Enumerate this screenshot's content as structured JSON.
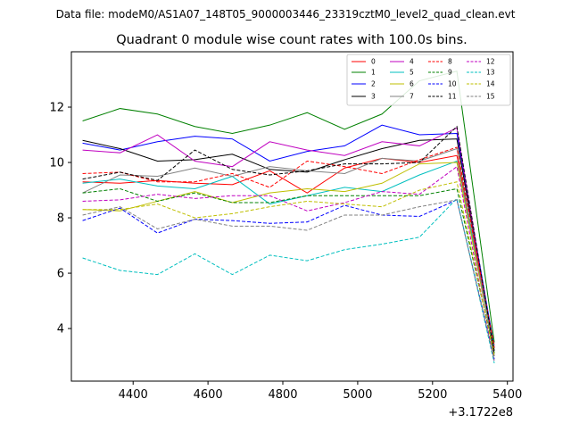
{
  "figure": {
    "suptitle": "Data file: modeM0/AS1A07_148T05_9000003446_23319cztM0_level2_quad_clean.evt"
  },
  "chart_data": {
    "type": "line",
    "title": "Quadrant 0 module wise count rates with 100.0s bins.",
    "xlabel": "",
    "ylabel": "",
    "x_offset_label": "+3.1722e8",
    "x_offset": 317220000,
    "xlim": [
      4235,
      5415
    ],
    "ylim": [
      2.1,
      14.0
    ],
    "x_ticks": [
      4400,
      4600,
      4800,
      5000,
      5200,
      5400
    ],
    "y_ticks": [
      4,
      6,
      8,
      10,
      12
    ],
    "x": [
      4265,
      4365,
      4465,
      4565,
      4665,
      4765,
      4865,
      4965,
      5065,
      5165,
      5265,
      5365
    ],
    "grid": false,
    "legend_position": "top-right",
    "series": [
      {
        "name": "0",
        "color": "#ff0000",
        "dash": "solid",
        "values": [
          9.3,
          9.25,
          9.35,
          9.25,
          9.2,
          9.7,
          8.9,
          9.8,
          10.15,
          10.0,
          10.25,
          3.4
        ]
      },
      {
        "name": "1",
        "color": "#008000",
        "dash": "solid",
        "values": [
          11.5,
          11.95,
          11.75,
          11.3,
          11.05,
          11.35,
          11.8,
          11.2,
          11.75,
          12.95,
          13.3,
          3.5
        ]
      },
      {
        "name": "2",
        "color": "#0000ff",
        "dash": "solid",
        "values": [
          10.7,
          10.45,
          10.75,
          10.95,
          10.85,
          10.05,
          10.4,
          10.6,
          11.35,
          11.0,
          11.05,
          3.3
        ]
      },
      {
        "name": "3",
        "color": "#000000",
        "dash": "solid",
        "values": [
          10.8,
          10.5,
          10.05,
          10.1,
          10.3,
          9.75,
          9.65,
          10.1,
          10.5,
          10.8,
          10.85,
          3.2
        ]
      },
      {
        "name": "4",
        "color": "#c000c0",
        "dash": "solid",
        "values": [
          10.45,
          10.35,
          11.0,
          10.05,
          9.85,
          10.75,
          10.45,
          10.25,
          10.75,
          10.6,
          11.25,
          3.0
        ]
      },
      {
        "name": "5",
        "color": "#00bfbf",
        "dash": "solid",
        "values": [
          9.25,
          9.4,
          9.15,
          9.05,
          9.5,
          8.5,
          8.8,
          9.1,
          8.95,
          9.55,
          10.05,
          3.3
        ]
      },
      {
        "name": "6",
        "color": "#bfbf00",
        "dash": "solid",
        "values": [
          8.3,
          8.25,
          8.6,
          8.95,
          8.55,
          8.9,
          9.05,
          8.95,
          9.25,
          9.95,
          10.0,
          3.1
        ]
      },
      {
        "name": "7",
        "color": "#808080",
        "dash": "solid",
        "values": [
          8.9,
          9.55,
          9.5,
          9.8,
          9.5,
          9.85,
          9.7,
          9.6,
          10.15,
          10.05,
          10.5,
          3.0
        ]
      },
      {
        "name": "8",
        "color": "#ff0000",
        "dash": "dashed",
        "values": [
          9.6,
          9.65,
          9.3,
          9.3,
          9.6,
          9.1,
          10.05,
          9.85,
          9.6,
          10.1,
          10.55,
          3.3
        ]
      },
      {
        "name": "9",
        "color": "#008000",
        "dash": "dashed",
        "values": [
          8.9,
          9.05,
          8.6,
          8.9,
          8.55,
          8.55,
          8.8,
          8.8,
          8.8,
          8.8,
          9.05,
          3.1
        ]
      },
      {
        "name": "10",
        "color": "#0000ff",
        "dash": "dashed",
        "values": [
          7.9,
          8.35,
          7.45,
          7.95,
          7.9,
          7.8,
          7.85,
          8.45,
          8.1,
          8.05,
          8.65,
          2.9
        ]
      },
      {
        "name": "11",
        "color": "#000000",
        "dash": "dashed",
        "values": [
          9.4,
          9.65,
          9.35,
          10.45,
          9.75,
          9.55,
          9.7,
          9.95,
          9.95,
          10.0,
          11.3,
          3.1
        ]
      },
      {
        "name": "12",
        "color": "#c000c0",
        "dash": "dashed",
        "values": [
          8.6,
          8.65,
          8.85,
          8.7,
          8.8,
          8.8,
          8.25,
          8.55,
          8.95,
          8.85,
          9.85,
          2.8
        ]
      },
      {
        "name": "13",
        "color": "#00bfbf",
        "dash": "dashed",
        "values": [
          6.55,
          6.1,
          5.95,
          6.7,
          5.95,
          6.65,
          6.45,
          6.85,
          7.05,
          7.3,
          8.7,
          2.75
        ]
      },
      {
        "name": "14",
        "color": "#bfbf00",
        "dash": "dashed",
        "values": [
          8.3,
          8.3,
          8.5,
          8.0,
          8.15,
          8.4,
          8.6,
          8.5,
          8.4,
          9.0,
          9.3,
          3.0
        ]
      },
      {
        "name": "15",
        "color": "#808080",
        "dash": "dashed",
        "values": [
          8.1,
          8.4,
          7.6,
          7.95,
          7.7,
          7.7,
          7.55,
          8.1,
          8.1,
          8.4,
          8.65,
          2.85
        ]
      }
    ]
  }
}
